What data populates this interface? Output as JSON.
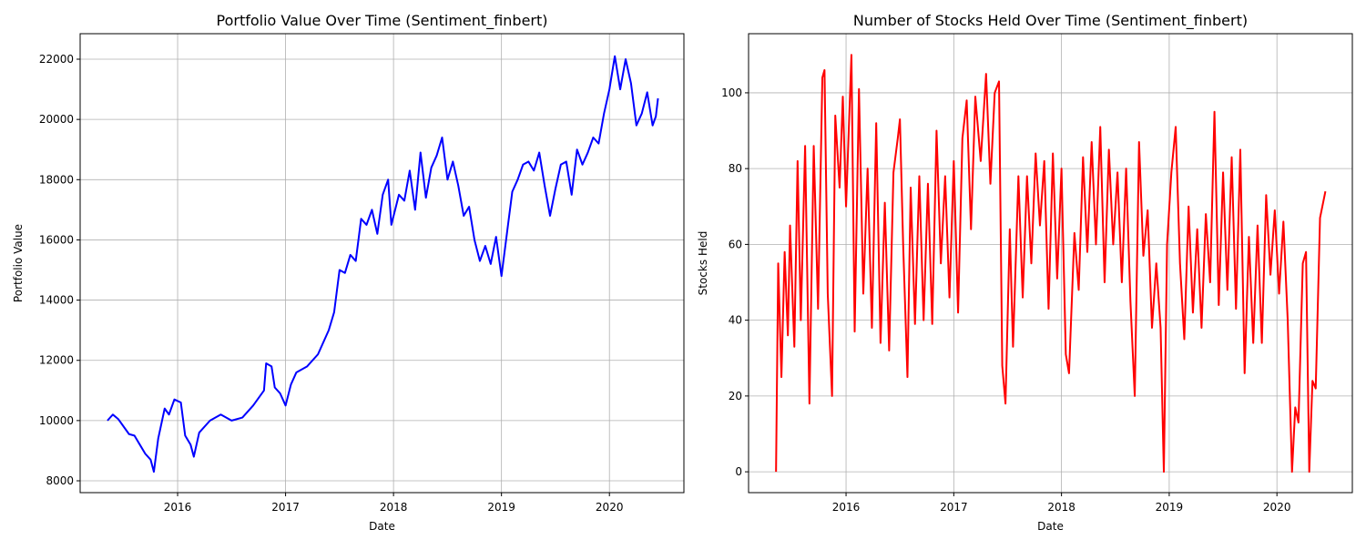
{
  "chart_data": [
    {
      "type": "line",
      "title": "Portfolio Value Over Time (Sentiment_finbert)",
      "x_label": "Date",
      "y_label": "Portfolio Value",
      "color": "#0000ff",
      "grid": true,
      "xlim": [
        2015.097,
        2020.69
      ],
      "ylim": [
        7607,
        22847
      ],
      "xticks": [
        2016,
        2017,
        2018,
        2019,
        2020
      ],
      "yticks": [
        8000,
        10000,
        12000,
        14000,
        16000,
        18000,
        20000,
        22000
      ],
      "x": [
        2015.35,
        2015.4,
        2015.45,
        2015.5,
        2015.55,
        2015.6,
        2015.65,
        2015.7,
        2015.75,
        2015.78,
        2015.82,
        2015.88,
        2015.92,
        2015.97,
        2016.03,
        2016.07,
        2016.12,
        2016.15,
        2016.2,
        2016.3,
        2016.4,
        2016.5,
        2016.6,
        2016.7,
        2016.8,
        2016.82,
        2016.87,
        2016.9,
        2016.95,
        2017.0,
        2017.05,
        2017.1,
        2017.2,
        2017.3,
        2017.4,
        2017.45,
        2017.5,
        2017.55,
        2017.6,
        2017.65,
        2017.7,
        2017.75,
        2017.8,
        2017.85,
        2017.9,
        2017.95,
        2017.98,
        2018.05,
        2018.1,
        2018.15,
        2018.2,
        2018.25,
        2018.3,
        2018.35,
        2018.4,
        2018.45,
        2018.5,
        2018.55,
        2018.6,
        2018.65,
        2018.7,
        2018.75,
        2018.8,
        2018.85,
        2018.9,
        2018.95,
        2019.0,
        2019.05,
        2019.1,
        2019.15,
        2019.2,
        2019.25,
        2019.3,
        2019.35,
        2019.4,
        2019.45,
        2019.5,
        2019.55,
        2019.6,
        2019.65,
        2019.7,
        2019.75,
        2019.8,
        2019.85,
        2019.9,
        2019.95,
        2020.0,
        2020.05,
        2020.1,
        2020.15,
        2020.2,
        2020.25,
        2020.3,
        2020.35,
        2020.4,
        2020.43,
        2020.45
      ],
      "values": [
        10000,
        10200,
        10050,
        9800,
        9550,
        9500,
        9200,
        8900,
        8700,
        8300,
        9400,
        10400,
        10200,
        10700,
        10600,
        9500,
        9200,
        8800,
        9600,
        10000,
        10200,
        10000,
        10100,
        10500,
        11000,
        11900,
        11800,
        11100,
        10900,
        10500,
        11200,
        11600,
        11800,
        12200,
        13000,
        13600,
        15000,
        14900,
        15500,
        15300,
        16700,
        16500,
        17000,
        16200,
        17500,
        18000,
        16500,
        17500,
        17300,
        18300,
        17000,
        18900,
        17400,
        18400,
        18800,
        19400,
        18000,
        18600,
        17800,
        16800,
        17100,
        16000,
        15300,
        15800,
        15200,
        16100,
        14800,
        16200,
        17600,
        18000,
        18500,
        18600,
        18300,
        18900,
        17800,
        16800,
        17700,
        18500,
        18600,
        17500,
        19000,
        18500,
        18900,
        19400,
        19200,
        20200,
        21000,
        22100,
        21000,
        22000,
        21200,
        19800,
        20200,
        20900,
        19800,
        20100,
        20700
      ]
    },
    {
      "type": "line",
      "title": "Number of Stocks Held Over Time (Sentiment_finbert)",
      "x_label": "Date",
      "y_label": "Stocks Held",
      "color": "#ff0000",
      "grid": true,
      "xlim": [
        2015.095,
        2020.7
      ],
      "ylim": [
        -5.5,
        115.6
      ],
      "xticks": [
        2016,
        2017,
        2018,
        2019,
        2020
      ],
      "yticks": [
        0,
        20,
        40,
        60,
        80,
        100
      ],
      "x": [
        2015.35,
        2015.37,
        2015.4,
        2015.43,
        2015.46,
        2015.48,
        2015.52,
        2015.55,
        2015.58,
        2015.62,
        2015.66,
        2015.7,
        2015.74,
        2015.78,
        2015.8,
        2015.83,
        2015.87,
        2015.9,
        2015.94,
        2015.97,
        2016.0,
        2016.05,
        2016.08,
        2016.12,
        2016.16,
        2016.2,
        2016.24,
        2016.28,
        2016.32,
        2016.36,
        2016.4,
        2016.44,
        2016.48,
        2016.5,
        2016.53,
        2016.57,
        2016.6,
        2016.64,
        2016.68,
        2016.72,
        2016.76,
        2016.8,
        2016.84,
        2016.88,
        2016.92,
        2016.96,
        2017.0,
        2017.04,
        2017.08,
        2017.12,
        2017.16,
        2017.2,
        2017.25,
        2017.3,
        2017.34,
        2017.38,
        2017.42,
        2017.45,
        2017.48,
        2017.52,
        2017.55,
        2017.6,
        2017.64,
        2017.68,
        2017.72,
        2017.76,
        2017.8,
        2017.84,
        2017.88,
        2017.92,
        2017.96,
        2018.0,
        2018.04,
        2018.07,
        2018.12,
        2018.16,
        2018.2,
        2018.24,
        2018.28,
        2018.32,
        2018.36,
        2018.4,
        2018.44,
        2018.48,
        2018.52,
        2018.56,
        2018.6,
        2018.64,
        2018.68,
        2018.72,
        2018.76,
        2018.8,
        2018.84,
        2018.88,
        2018.92,
        2018.95,
        2018.98,
        2019.02,
        2019.06,
        2019.1,
        2019.14,
        2019.18,
        2019.22,
        2019.26,
        2019.3,
        2019.34,
        2019.38,
        2019.42,
        2019.46,
        2019.5,
        2019.54,
        2019.58,
        2019.62,
        2019.66,
        2019.7,
        2019.74,
        2019.78,
        2019.82,
        2019.86,
        2019.9,
        2019.94,
        2019.98,
        2020.02,
        2020.06,
        2020.1,
        2020.14,
        2020.17,
        2020.2,
        2020.24,
        2020.27,
        2020.3,
        2020.33,
        2020.36,
        2020.4,
        2020.45
      ],
      "values": [
        0,
        55,
        25,
        58,
        36,
        65,
        33,
        82,
        40,
        86,
        18,
        86,
        43,
        104,
        106,
        47,
        20,
        94,
        75,
        99,
        70,
        110,
        37,
        101,
        47,
        80,
        38,
        92,
        34,
        71,
        32,
        79,
        88,
        93,
        60,
        25,
        75,
        39,
        78,
        40,
        76,
        39,
        90,
        55,
        78,
        46,
        82,
        42,
        88,
        98,
        64,
        99,
        82,
        105,
        76,
        100,
        103,
        28,
        18,
        64,
        33,
        78,
        46,
        78,
        55,
        84,
        65,
        82,
        43,
        84,
        51,
        80,
        31,
        26,
        63,
        48,
        83,
        58,
        87,
        60,
        91,
        50,
        85,
        60,
        79,
        50,
        80,
        45,
        20,
        87,
        57,
        69,
        38,
        55,
        38,
        0,
        60,
        79,
        91,
        55,
        35,
        70,
        42,
        64,
        38,
        68,
        50,
        95,
        44,
        79,
        48,
        83,
        43,
        85,
        26,
        62,
        34,
        65,
        34,
        73,
        52,
        69,
        47,
        66,
        40,
        0,
        17,
        13,
        55,
        58,
        0,
        24,
        22,
        67,
        74
      ]
    }
  ]
}
